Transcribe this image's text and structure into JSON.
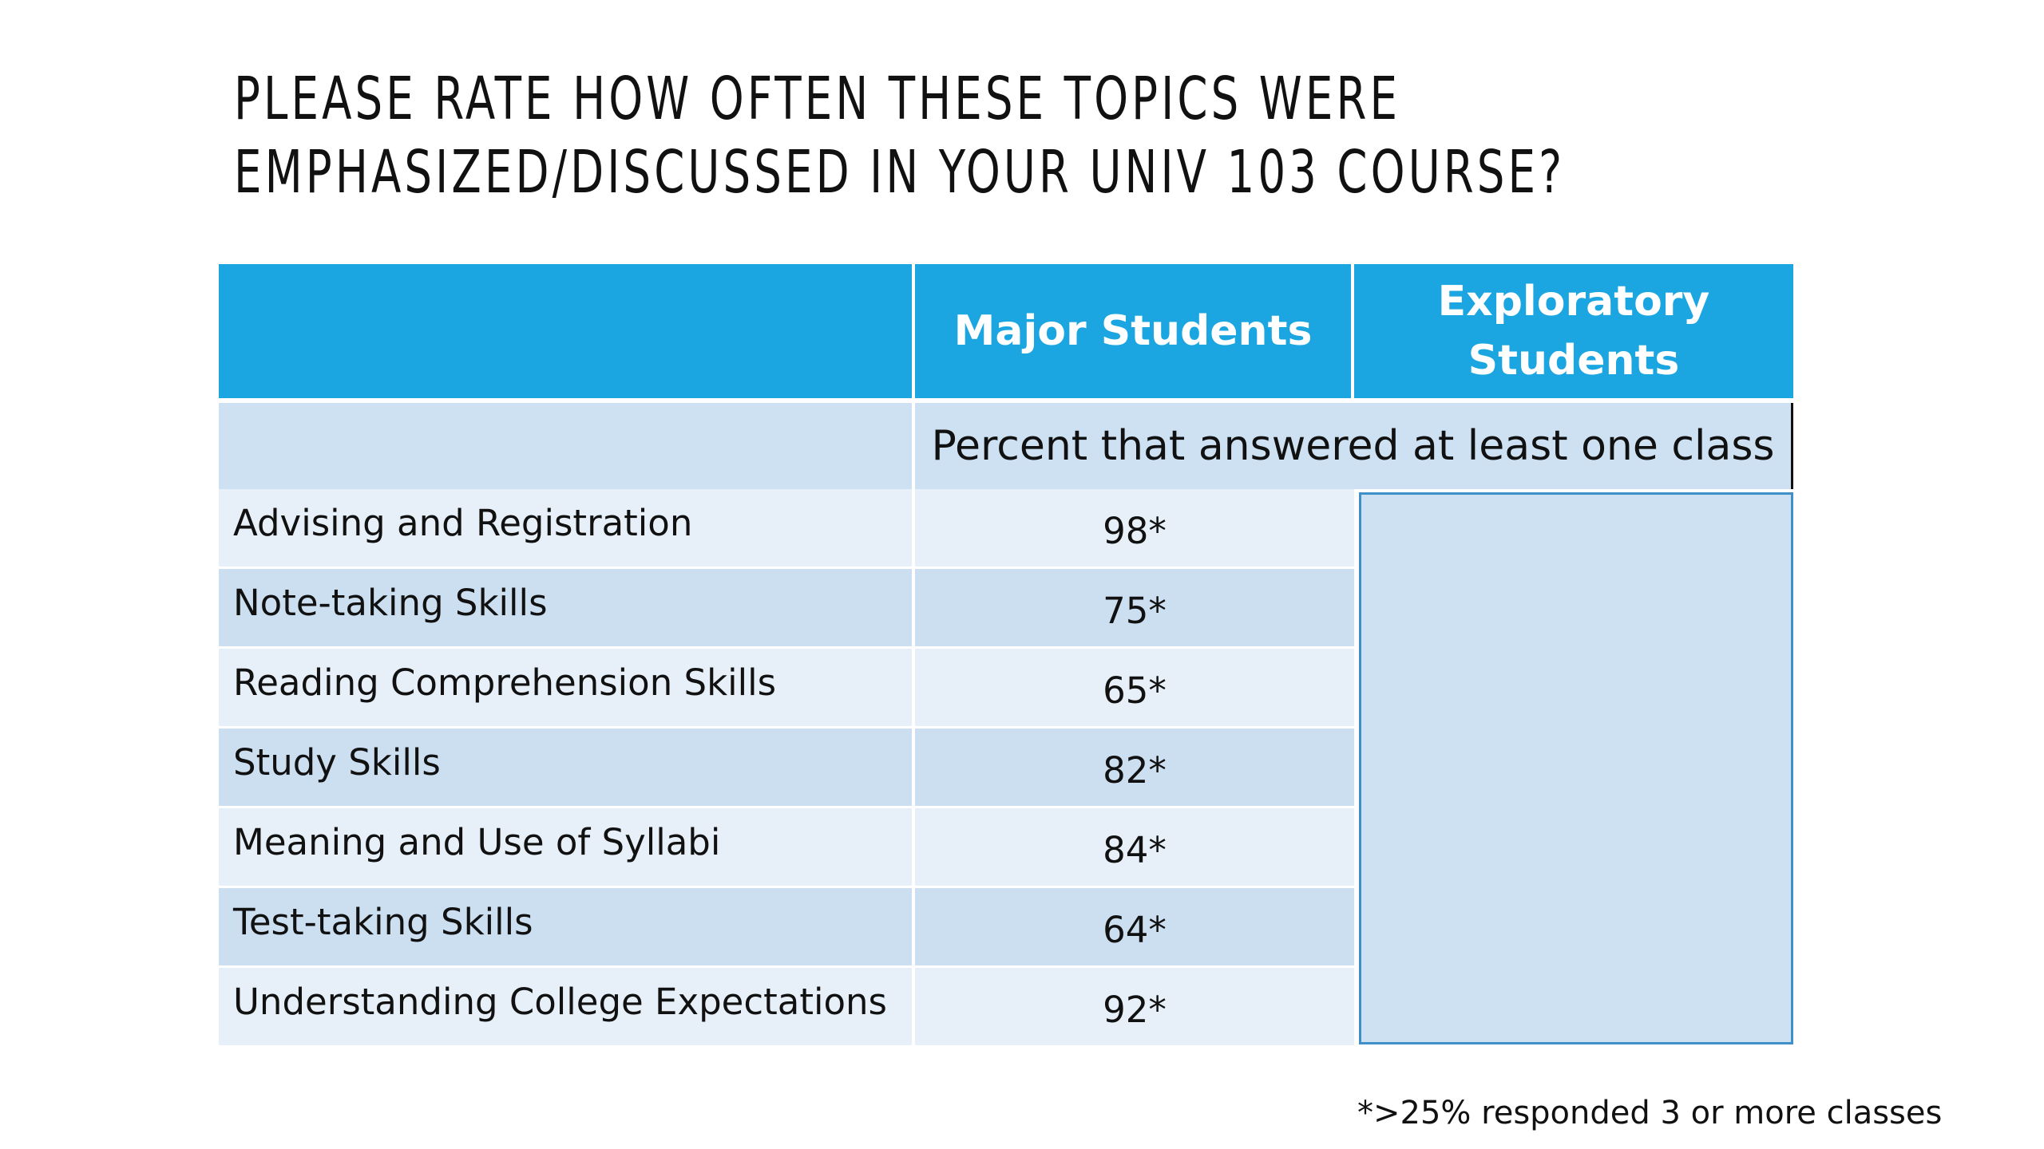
{
  "title": {
    "line1": "PLEASE RATE HOW OFTEN THESE TOPICS WERE",
    "line2": "EMPHASIZED/DISCUSSED IN YOUR UNIV 103 COURSE?"
  },
  "table": {
    "header": {
      "col2": "Major Students",
      "col3_line1": "Exploratory",
      "col3_line2": "Students"
    },
    "subheader": "Percent that answered at least one class",
    "rows": [
      {
        "topic": "Advising and Registration",
        "major": "98*"
      },
      {
        "topic": "Note-taking Skills",
        "major": "75*"
      },
      {
        "topic": "Reading Comprehension Skills",
        "major": "65*"
      },
      {
        "topic": "Study Skills",
        "major": "82*"
      },
      {
        "topic": "Meaning and Use of Syllabi",
        "major": "84*"
      },
      {
        "topic": "Test-taking Skills",
        "major": "64*"
      },
      {
        "topic": "Understanding College Expectations",
        "major": "92*"
      }
    ]
  },
  "footnote": "*>25% responded 3 or more classes",
  "colors": {
    "header_bg": "#1ca6e1",
    "row_light": "#e7f0f9",
    "row_dark": "#ccdff1",
    "box_border": "#3f8fc8"
  }
}
